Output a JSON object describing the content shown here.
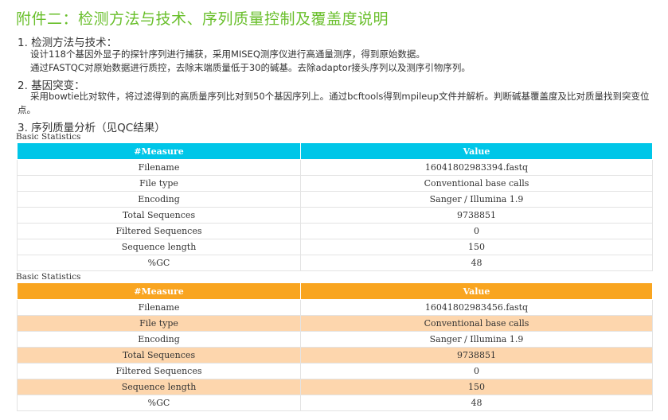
{
  "title": "附件二：检测方法与技术、序列质量控制及覆盖度说明",
  "section1": {
    "heading": "1. 检测方法与技术：",
    "lines": [
      "设计118个基因外显子的探针序列进行捕获，采用MISEQ测序仪进行高通量测序，得到原始数据。",
      "通过FASTQC对原始数据进行质控，去除末端质量低于30的碱基。去除adaptor接头序列以及测序引物序列。"
    ]
  },
  "section2": {
    "heading": "2. 基因突变：",
    "lines": [
      "采用bowtie比对软件，将过滤得到的高质量序列比对到50个基因序列上。通过bcftools得到mpileup文件并解析。判断碱基覆盖度及比对质量找到突变位点。"
    ]
  },
  "section3": {
    "heading": "3. 序列质量分析（见QC结果）"
  },
  "tables": [
    {
      "caption": "Basic Statistics",
      "header_color": "#00c6e8",
      "alt_row_color": "#ffffff",
      "columns": [
        "#Measure",
        "Value"
      ],
      "rows": [
        [
          "Filename",
          "16041802983394.fastq"
        ],
        [
          "File type",
          "Conventional base calls"
        ],
        [
          "Encoding",
          "Sanger / Illumina 1.9"
        ],
        [
          "Total Sequences",
          "9738851"
        ],
        [
          "Filtered Sequences",
          "0"
        ],
        [
          "Sequence length",
          "150"
        ],
        [
          "%GC",
          "48"
        ]
      ]
    },
    {
      "caption": "Basic Statistics",
      "header_color": "#f9a520",
      "alt_row_color": "#fdd6ad",
      "columns": [
        "#Measure",
        "Value"
      ],
      "rows": [
        [
          "Filename",
          "16041802983456.fastq"
        ],
        [
          "File type",
          "Conventional base calls"
        ],
        [
          "Encoding",
          "Sanger / Illumina 1.9"
        ],
        [
          "Total Sequences",
          "9738851"
        ],
        [
          "Filtered Sequences",
          "0"
        ],
        [
          "Sequence length",
          "150"
        ],
        [
          "%GC",
          "48"
        ]
      ]
    }
  ]
}
